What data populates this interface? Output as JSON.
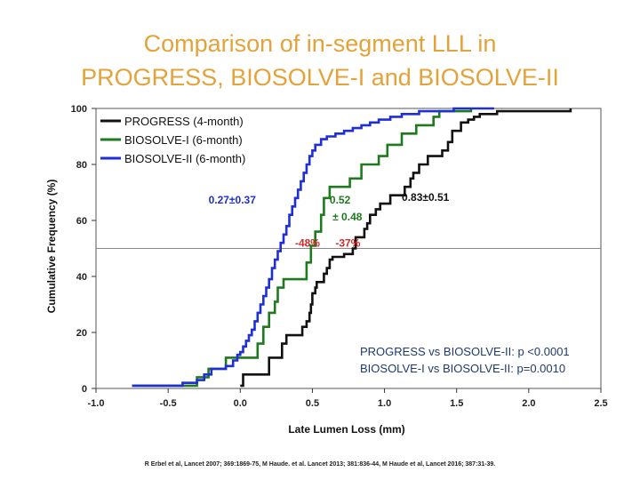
{
  "title": {
    "line1": "Comparison of in-segment LLL in",
    "line2": "PROGRESS, BIOSOLVE-I and BIOSOLVE-II"
  },
  "chart_data": {
    "type": "line",
    "step": true,
    "xlabel": "Late Lumen Loss (mm)",
    "ylabel": "Cumulative Frequency (%)",
    "xlim": [
      -1.0,
      2.5
    ],
    "ylim": [
      0,
      100
    ],
    "x_ticks": [
      "-1.0",
      "-0.5",
      "0.0",
      "0.5",
      "1.0",
      "1.5",
      "2.0",
      "2.5"
    ],
    "y_ticks": [
      "0",
      "20",
      "40",
      "60",
      "80",
      "100"
    ],
    "reference_line_y": 50,
    "legend_position": "top-left",
    "series": [
      {
        "name": "PROGRESS (4-month)",
        "color": "#111111",
        "points": [
          [
            0.0,
            1
          ],
          [
            0.02,
            5
          ],
          [
            0.17,
            5
          ],
          [
            0.2,
            11
          ],
          [
            0.27,
            11
          ],
          [
            0.29,
            16
          ],
          [
            0.3,
            16
          ],
          [
            0.32,
            19
          ],
          [
            0.4,
            19
          ],
          [
            0.43,
            22
          ],
          [
            0.46,
            24
          ],
          [
            0.48,
            27
          ],
          [
            0.49,
            30
          ],
          [
            0.5,
            34
          ],
          [
            0.52,
            36
          ],
          [
            0.53,
            38
          ],
          [
            0.56,
            38
          ],
          [
            0.58,
            41
          ],
          [
            0.6,
            43
          ],
          [
            0.62,
            46
          ],
          [
            0.64,
            47
          ],
          [
            0.66,
            47
          ],
          [
            0.68,
            47
          ],
          [
            0.7,
            47
          ],
          [
            0.72,
            48
          ],
          [
            0.76,
            48
          ],
          [
            0.78,
            50
          ],
          [
            0.8,
            54
          ],
          [
            0.84,
            54
          ],
          [
            0.86,
            57
          ],
          [
            0.88,
            59
          ],
          [
            0.9,
            62
          ],
          [
            0.94,
            64
          ],
          [
            0.97,
            66
          ],
          [
            1.0,
            66
          ],
          [
            1.04,
            69
          ],
          [
            1.1,
            69
          ],
          [
            1.14,
            72
          ],
          [
            1.18,
            75
          ],
          [
            1.2,
            77
          ],
          [
            1.24,
            80
          ],
          [
            1.3,
            83
          ],
          [
            1.34,
            83
          ],
          [
            1.4,
            85
          ],
          [
            1.44,
            88
          ],
          [
            1.47,
            92
          ],
          [
            1.5,
            92
          ],
          [
            1.53,
            95
          ],
          [
            1.58,
            96
          ],
          [
            1.62,
            97
          ],
          [
            1.66,
            98
          ],
          [
            1.74,
            98
          ],
          [
            1.78,
            99
          ],
          [
            2.29,
            100
          ]
        ]
      },
      {
        "name": "BIOSOLVE-I (6-month)",
        "color": "#1f7a1f",
        "points": [
          [
            -0.75,
            1
          ],
          [
            -0.3,
            4
          ],
          [
            -0.22,
            7
          ],
          [
            -0.1,
            11
          ],
          [
            0.1,
            11
          ],
          [
            0.12,
            16
          ],
          [
            0.16,
            22
          ],
          [
            0.2,
            27
          ],
          [
            0.24,
            31
          ],
          [
            0.26,
            36
          ],
          [
            0.3,
            39
          ],
          [
            0.44,
            39
          ],
          [
            0.46,
            45
          ],
          [
            0.49,
            51
          ],
          [
            0.52,
            56
          ],
          [
            0.56,
            62
          ],
          [
            0.58,
            68
          ],
          [
            0.62,
            72
          ],
          [
            0.7,
            72
          ],
          [
            0.76,
            75
          ],
          [
            0.84,
            80
          ],
          [
            0.92,
            80
          ],
          [
            0.96,
            83
          ],
          [
            1.0,
            83
          ],
          [
            1.02,
            87
          ],
          [
            1.1,
            87
          ],
          [
            1.12,
            91
          ],
          [
            1.2,
            91
          ],
          [
            1.22,
            94
          ],
          [
            1.3,
            94
          ],
          [
            1.34,
            97
          ],
          [
            1.38,
            99
          ],
          [
            1.52,
            99
          ],
          [
            1.6,
            100
          ]
        ]
      },
      {
        "name": "BIOSOLVE-II (6-month)",
        "color": "#1f2fd6",
        "points": [
          [
            -0.75,
            1
          ],
          [
            -0.4,
            2
          ],
          [
            -0.3,
            3
          ],
          [
            -0.25,
            5
          ],
          [
            -0.2,
            7
          ],
          [
            -0.1,
            8
          ],
          [
            -0.05,
            10
          ],
          [
            -0.02,
            12
          ],
          [
            0.0,
            13
          ],
          [
            0.02,
            15
          ],
          [
            0.04,
            17
          ],
          [
            0.06,
            19
          ],
          [
            0.08,
            21
          ],
          [
            0.1,
            24
          ],
          [
            0.12,
            27
          ],
          [
            0.14,
            30
          ],
          [
            0.16,
            33
          ],
          [
            0.18,
            36
          ],
          [
            0.2,
            39
          ],
          [
            0.22,
            43
          ],
          [
            0.24,
            46
          ],
          [
            0.26,
            49
          ],
          [
            0.28,
            52
          ],
          [
            0.3,
            55
          ],
          [
            0.32,
            58
          ],
          [
            0.34,
            62
          ],
          [
            0.36,
            65
          ],
          [
            0.38,
            68
          ],
          [
            0.4,
            71
          ],
          [
            0.42,
            74
          ],
          [
            0.44,
            77
          ],
          [
            0.46,
            80
          ],
          [
            0.48,
            83
          ],
          [
            0.5,
            85
          ],
          [
            0.52,
            87
          ],
          [
            0.56,
            89
          ],
          [
            0.6,
            90
          ],
          [
            0.66,
            91
          ],
          [
            0.72,
            92
          ],
          [
            0.78,
            93
          ],
          [
            0.84,
            94
          ],
          [
            0.9,
            95
          ],
          [
            0.96,
            96
          ],
          [
            1.04,
            97
          ],
          [
            1.12,
            98
          ],
          [
            1.24,
            99
          ],
          [
            1.36,
            99
          ],
          [
            1.48,
            100
          ],
          [
            1.76,
            100
          ]
        ]
      }
    ],
    "annotations": [
      {
        "text": "0.27±0.37",
        "color": "#1f2fd6",
        "x": -0.22,
        "y": 66
      },
      {
        "text": "0.52",
        "color": "#1f7a1f",
        "x": 0.62,
        "y": 66
      },
      {
        "text": "± 0.48",
        "color": "#1f7a1f",
        "x": 0.64,
        "y": 60
      },
      {
        "text": "0.83±0.51",
        "color": "#111111",
        "x": 1.12,
        "y": 67
      },
      {
        "text": "-48%",
        "color": "#d42a2a",
        "x": 0.38,
        "y": 50.6
      },
      {
        "text": "-37%",
        "color": "#d42a2a",
        "x": 0.66,
        "y": 50.6
      }
    ],
    "pvalues": [
      "PROGRESS vs BIOSOLVE-II: p <0.0001",
      "BIOSOLVE-I vs BIOSOLVE-II: p=0.0010"
    ]
  },
  "reference": "R Erbel et al, Lancet 2007; 369:1869-75, M Haude. et al. Lancet 2013; 381:836-44, M Haude et al, Lancet 2016; 387:31-39."
}
